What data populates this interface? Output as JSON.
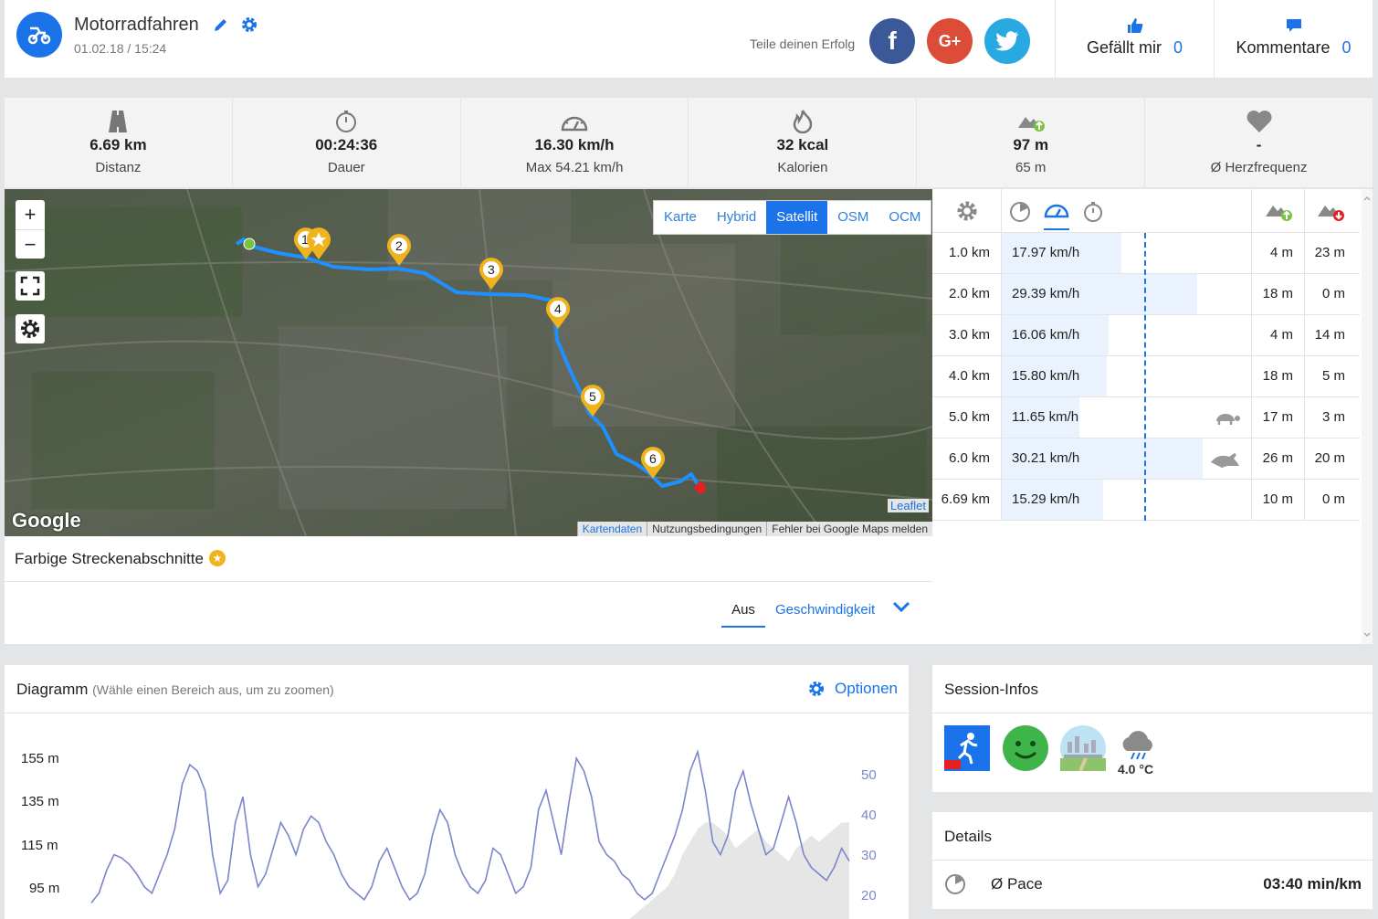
{
  "activity": {
    "title": "Motorradfahren",
    "datetime": "01.02.18 / 15:24"
  },
  "share": {
    "label": "Teile deinen Erfolg",
    "facebook": "f",
    "google": "G+"
  },
  "likes": {
    "label": "Gefällt mir",
    "count": "0"
  },
  "comments": {
    "label": "Kommentare",
    "count": "0"
  },
  "stats": [
    {
      "icon": "road-icon",
      "value": "6.69 km",
      "label": "Distanz"
    },
    {
      "icon": "stopwatch-icon",
      "value": "00:24:36",
      "label": "Dauer"
    },
    {
      "icon": "speedometer-icon",
      "value": "16.30 km/h",
      "label": "Max 54.21 km/h"
    },
    {
      "icon": "flame-icon",
      "value": "32 kcal",
      "label": "Kalorien"
    },
    {
      "icon": "elevation-up-icon",
      "value": "97 m",
      "label": "65 m"
    },
    {
      "icon": "heart-icon",
      "value": "-",
      "label": "Ø Herzfrequenz"
    }
  ],
  "map": {
    "zoom_in": "+",
    "zoom_out": "−",
    "layers": [
      "Karte",
      "Hybrid",
      "Satellit",
      "OSM",
      "OCM"
    ],
    "active_layer": "Satellit",
    "markers": [
      "1",
      "2",
      "3",
      "4",
      "5",
      "6"
    ],
    "attribution": [
      "Kartendaten",
      "Nutzungsbedingungen",
      "Fehler bei Google Maps melden"
    ],
    "leaflet": "Leaflet",
    "google": "Google"
  },
  "segments": {
    "title": "Farbige Streckenabschnitte",
    "off": "Aus",
    "speed": "Geschwindigkeit"
  },
  "splits": {
    "speed_fraction_max": 30.21,
    "rows": [
      {
        "km": "1.0 km",
        "speed": "17.97 km/h",
        "speed_value": 17.97,
        "up": "4 m",
        "down": "23 m",
        "badge": ""
      },
      {
        "km": "2.0 km",
        "speed": "29.39 km/h",
        "speed_value": 29.39,
        "up": "18 m",
        "down": "0 m",
        "badge": ""
      },
      {
        "km": "3.0 km",
        "speed": "16.06 km/h",
        "speed_value": 16.06,
        "up": "4 m",
        "down": "14 m",
        "badge": ""
      },
      {
        "km": "4.0 km",
        "speed": "15.80 km/h",
        "speed_value": 15.8,
        "up": "18 m",
        "down": "5 m",
        "badge": ""
      },
      {
        "km": "5.0 km",
        "speed": "11.65 km/h",
        "speed_value": 11.65,
        "up": "17 m",
        "down": "3 m",
        "badge": "turtle-icon"
      },
      {
        "km": "6.0 km",
        "speed": "30.21 km/h",
        "speed_value": 30.21,
        "up": "26 m",
        "down": "20 m",
        "badge": "rabbit-icon"
      },
      {
        "km": "6.69 km",
        "speed": "15.29 km/h",
        "speed_value": 15.29,
        "up": "10 m",
        "down": "0 m",
        "badge": ""
      }
    ]
  },
  "diagram": {
    "title": "Diagramm",
    "hint": "(Wähle einen Bereich aus, um zu zoomen)",
    "options": "Optionen"
  },
  "chart_data": {
    "type": "line",
    "y_left_ticks": [
      "155 m",
      "135 m",
      "115 m",
      "95 m"
    ],
    "y_right_ticks": [
      "50",
      "40",
      "30",
      "20"
    ],
    "series": [
      {
        "color": "#7a86c9",
        "values": [
          5,
          8,
          15,
          20,
          19,
          17,
          14,
          10,
          8,
          14,
          20,
          28,
          42,
          48,
          46,
          40,
          20,
          8,
          12,
          30,
          38,
          20,
          10,
          14,
          22,
          30,
          26,
          20,
          28,
          32,
          30,
          24,
          20,
          14,
          10,
          8,
          6,
          10,
          18,
          22,
          16,
          10,
          6,
          8,
          14,
          26,
          34,
          30,
          20,
          14,
          10,
          8,
          12,
          22,
          20,
          14,
          8,
          10,
          16,
          34,
          40,
          30,
          20,
          36,
          50,
          46,
          38,
          24,
          20,
          18,
          14,
          12,
          8,
          6,
          8,
          14,
          20,
          26,
          34,
          46,
          52,
          40,
          24,
          20,
          26,
          40,
          46,
          36,
          28,
          20,
          22,
          30,
          38,
          30,
          20,
          16,
          14,
          12,
          16,
          22,
          18
        ]
      },
      {
        "color": "#cccccc",
        "values": [
          0,
          0,
          0,
          0,
          0,
          0,
          0,
          0,
          0,
          0,
          0,
          0,
          0,
          0,
          0,
          0,
          0,
          0,
          0,
          0,
          0,
          0,
          0,
          0,
          0,
          0,
          0,
          0,
          0,
          0,
          0,
          0,
          0,
          0,
          0,
          0,
          0,
          0,
          0,
          0,
          0,
          0,
          0,
          0,
          0,
          0,
          0,
          0,
          0,
          0,
          0,
          0,
          0,
          0,
          0,
          0,
          0,
          0,
          0,
          0,
          0,
          0,
          0,
          0,
          0,
          0,
          0,
          0,
          0,
          0,
          0,
          0,
          2,
          4,
          6,
          8,
          10,
          14,
          20,
          24,
          28,
          30,
          30,
          28,
          26,
          22,
          24,
          26,
          28,
          24,
          22,
          20,
          18,
          22,
          24,
          26,
          24,
          26,
          28,
          30,
          30
        ]
      }
    ]
  },
  "session": {
    "title": "Session-Infos",
    "temperature": "4.0 °C"
  },
  "details": {
    "title": "Details",
    "pace_label": "Ø Pace",
    "pace_value": "03:40 min/km"
  }
}
